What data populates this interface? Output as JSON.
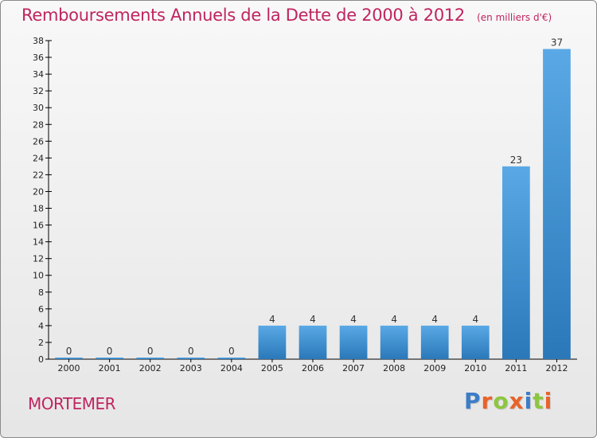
{
  "header": {
    "title": "Remboursements Annuels de la Dette de 2000 à 2012",
    "subtitle": "(en milliers d'€)"
  },
  "footer": {
    "town": "MORTEMER",
    "brand": "Proxiti",
    "brand_colors": [
      "#3b7dc8",
      "#e8632a",
      "#8dc63f",
      "#e8632a",
      "#3b7dc8",
      "#8dc63f",
      "#e8632a"
    ]
  },
  "colors": {
    "title": "#c0245f",
    "bar_top": "#5aa9e6",
    "bar_bottom": "#2a78b8",
    "axis": "#000000",
    "grid": "#d0d0d0"
  },
  "chart_data": {
    "type": "bar",
    "title": "Remboursements Annuels de la Dette de 2000 à 2012",
    "subtitle": "(en milliers d'€)",
    "categories": [
      "2000",
      "2001",
      "2002",
      "2003",
      "2004",
      "2005",
      "2006",
      "2007",
      "2008",
      "2009",
      "2010",
      "2011",
      "2012"
    ],
    "values": [
      0,
      0,
      0,
      0,
      0,
      4,
      4,
      4,
      4,
      4,
      4,
      23,
      37
    ],
    "data_labels": [
      "0",
      "0",
      "0",
      "0",
      "0",
      "4",
      "4",
      "4",
      "4",
      "4",
      "4",
      "23",
      "37"
    ],
    "ylim": [
      0,
      38
    ],
    "yticks": [
      0,
      2,
      4,
      6,
      8,
      10,
      12,
      14,
      16,
      18,
      20,
      22,
      24,
      26,
      28,
      30,
      32,
      34,
      36,
      38
    ],
    "xlabel": "",
    "ylabel": "",
    "grid": false,
    "legend": "none"
  }
}
